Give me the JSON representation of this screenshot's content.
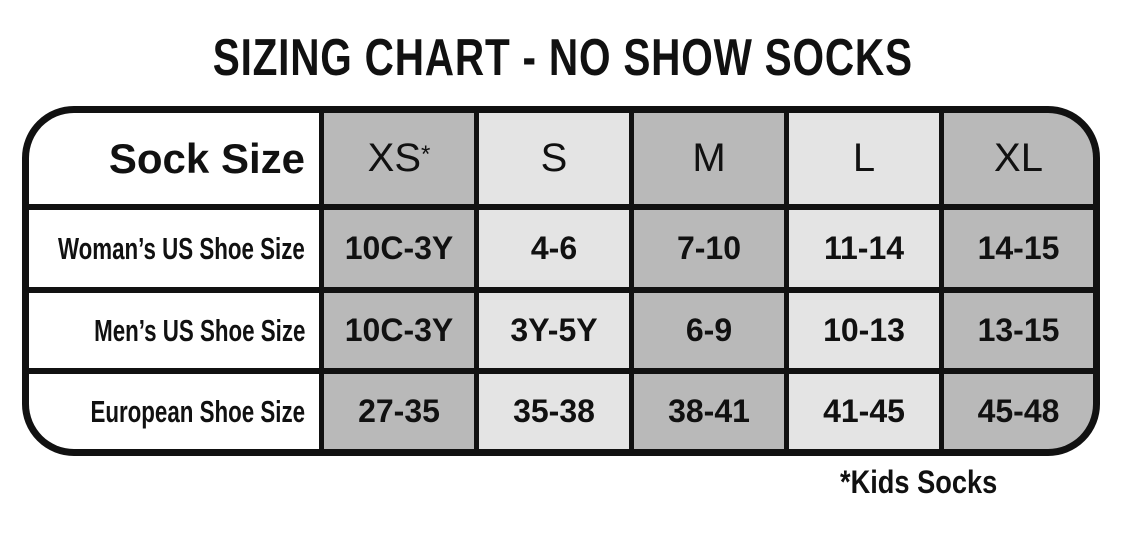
{
  "title": "SIZING CHART - NO SHOW SOCKS",
  "table": {
    "header_label": "Sock Size",
    "sizes": [
      "XS",
      "S",
      "M",
      "L",
      "XL"
    ],
    "xs_marker": "*",
    "rows": [
      {
        "label": "Woman’s US Shoe Size",
        "values": [
          "10C-3Y",
          "4-6",
          "7-10",
          "11-14",
          "14-15"
        ]
      },
      {
        "label": "Men’s US Shoe Size",
        "values": [
          "10C-3Y",
          "3Y-5Y",
          "6-9",
          "10-13",
          "13-15"
        ]
      },
      {
        "label": "European Shoe Size",
        "values": [
          "27-35",
          "35-38",
          "38-41",
          "41-45",
          "45-48"
        ]
      }
    ],
    "colors": {
      "dark": "#b9b9b9",
      "light": "#e4e4e4",
      "border": "#111111"
    }
  },
  "footnote": "*Kids Socks"
}
